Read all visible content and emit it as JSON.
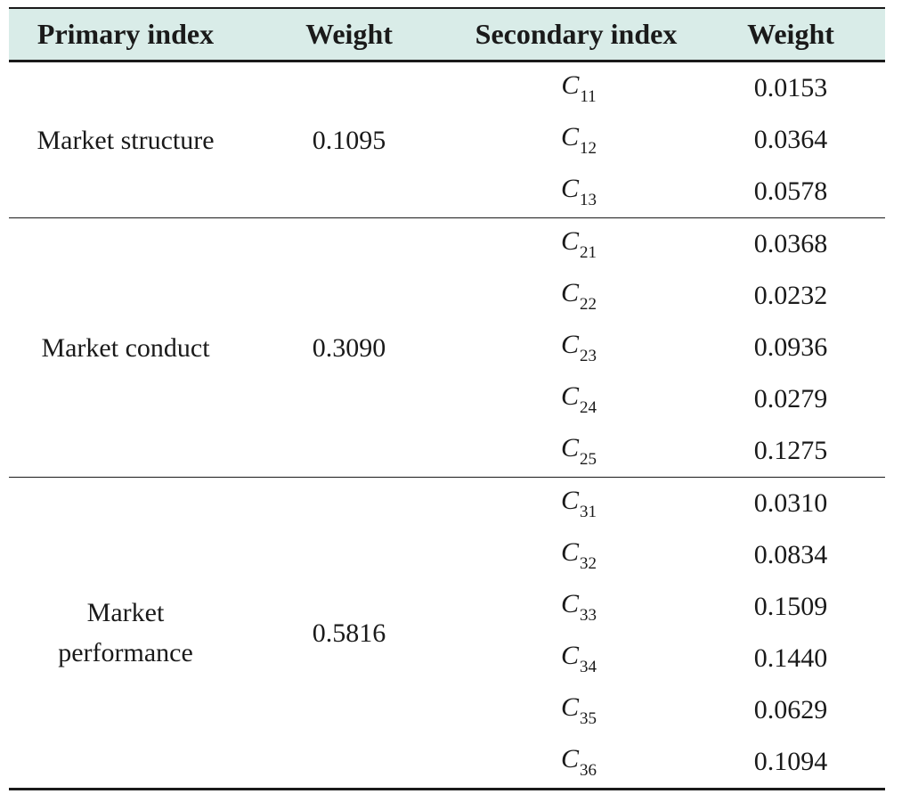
{
  "table": {
    "headers": {
      "primary_index": "Primary index",
      "weight_primary": "Weight",
      "secondary_index": "Secondary index",
      "weight_secondary": "Weight"
    },
    "groups": [
      {
        "primary": "Market structure",
        "weight": "0.1095",
        "rows": [
          {
            "letter": "C",
            "sub": "11",
            "weight": "0.0153"
          },
          {
            "letter": "C",
            "sub": "12",
            "weight": "0.0364"
          },
          {
            "letter": "C",
            "sub": "13",
            "weight": "0.0578"
          }
        ]
      },
      {
        "primary": "Market conduct",
        "weight": "0.3090",
        "rows": [
          {
            "letter": "C",
            "sub": "21",
            "weight": "0.0368"
          },
          {
            "letter": "C",
            "sub": "22",
            "weight": "0.0232"
          },
          {
            "letter": "C",
            "sub": "23",
            "weight": "0.0936"
          },
          {
            "letter": "C",
            "sub": "24",
            "weight": "0.0279"
          },
          {
            "letter": "C",
            "sub": "25",
            "weight": "0.1275"
          }
        ]
      },
      {
        "primary": "Market performance",
        "primary_line1": "Market",
        "primary_line2": "performance",
        "weight": "0.5816",
        "rows": [
          {
            "letter": "C",
            "sub": "31",
            "weight": "0.0310"
          },
          {
            "letter": "C",
            "sub": "32",
            "weight": "0.0834"
          },
          {
            "letter": "C",
            "sub": "33",
            "weight": "0.1509"
          },
          {
            "letter": "C",
            "sub": "34",
            "weight": "0.1440"
          },
          {
            "letter": "C",
            "sub": "35",
            "weight": "0.0629"
          },
          {
            "letter": "C",
            "sub": "36",
            "weight": "0.1094"
          }
        ]
      }
    ]
  }
}
